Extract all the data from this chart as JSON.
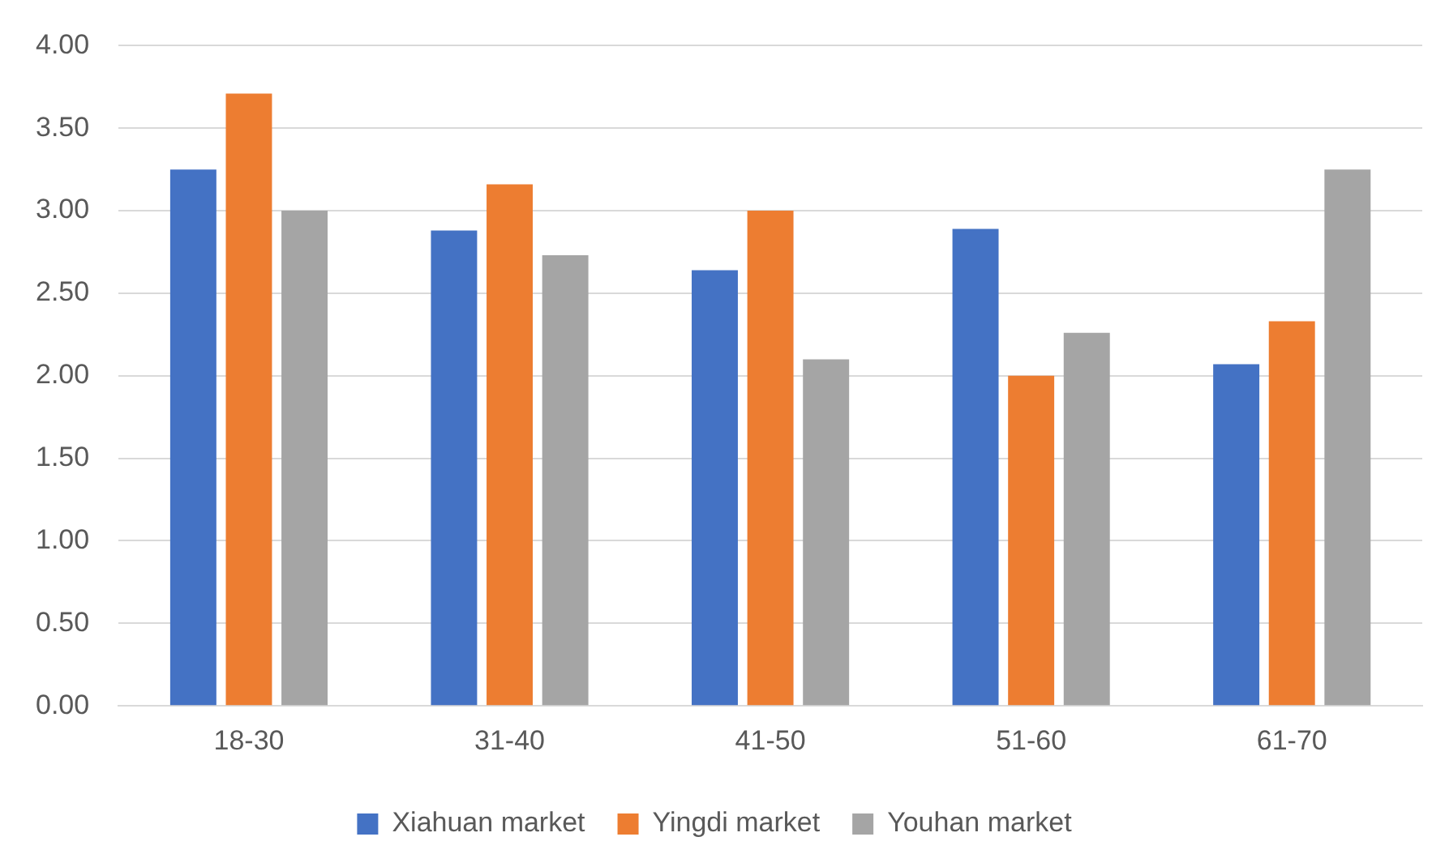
{
  "chart_data": {
    "type": "bar",
    "categories": [
      "18-30",
      "31-40",
      "41-50",
      "51-60",
      "61-70"
    ],
    "series": [
      {
        "name": "Xiahuan market",
        "color": "#4472c4",
        "values": [
          3.25,
          2.88,
          2.64,
          2.89,
          2.07
        ]
      },
      {
        "name": "Yingdi market",
        "color": "#ed7d31",
        "values": [
          3.71,
          3.16,
          3.0,
          2.0,
          2.33
        ]
      },
      {
        "name": "Youhan market",
        "color": "#a5a5a5",
        "values": [
          3.0,
          2.73,
          2.1,
          2.26,
          3.25
        ]
      }
    ],
    "ylim": [
      0,
      4
    ],
    "yticks": [
      {
        "value": 0,
        "label": "0.00"
      },
      {
        "value": 0.5,
        "label": "0.50"
      },
      {
        "value": 1,
        "label": "1.00"
      },
      {
        "value": 1.5,
        "label": "1.50"
      },
      {
        "value": 2,
        "label": "2.00"
      },
      {
        "value": 2.5,
        "label": "2.50"
      },
      {
        "value": 3,
        "label": "3.00"
      },
      {
        "value": 3.5,
        "label": "3.50"
      },
      {
        "value": 4,
        "label": "4.00"
      }
    ],
    "grid": "y",
    "legend": "bottom"
  }
}
